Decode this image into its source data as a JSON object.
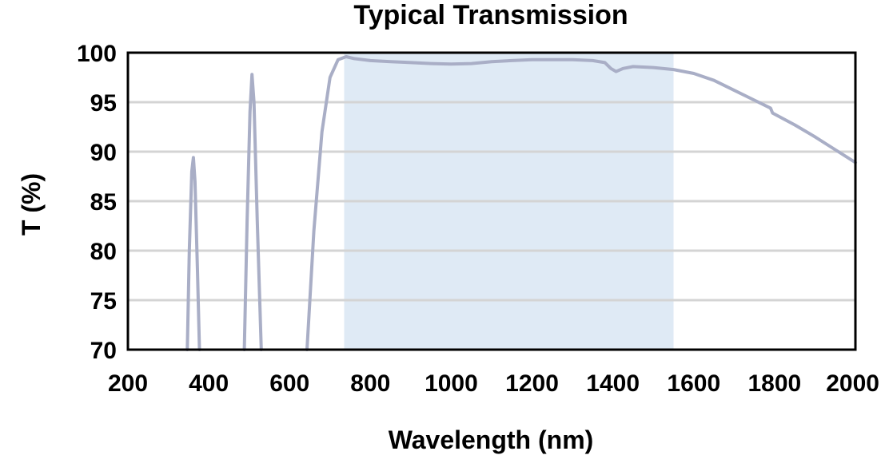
{
  "chart_data": {
    "type": "line",
    "title": "Typical Transmission",
    "xlabel": "Wavelength (nm)",
    "ylabel": "T (%)",
    "xlim": [
      200,
      2000
    ],
    "ylim": [
      70,
      100
    ],
    "xticks": [
      "200",
      "400",
      "600",
      "800",
      "1000",
      "1200",
      "1400",
      "1600",
      "1800",
      "2000"
    ],
    "yticks": [
      "70",
      "75",
      "80",
      "85",
      "90",
      "95",
      "100"
    ],
    "grid": true,
    "highlight_band": {
      "x0": 735,
      "x1": 1550,
      "color": "#dfeaf5"
    },
    "series_color": "#a9aec6",
    "series": [
      {
        "segments": [
          [
            [
              347,
              70
            ],
            [
              352,
              80
            ],
            [
              358,
              88
            ],
            [
              362,
              89.4
            ],
            [
              366,
              87
            ],
            [
              372,
              78
            ],
            [
              377,
              70
            ]
          ],
          [
            [
              488,
              70
            ],
            [
              495,
              83
            ],
            [
              502,
              94
            ],
            [
              507,
              97.8
            ],
            [
              512,
              95
            ],
            [
              520,
              83
            ],
            [
              530,
              70
            ]
          ],
          [
            [
              643,
              70
            ],
            [
              660,
              82
            ],
            [
              680,
              92
            ],
            [
              700,
              97.5
            ],
            [
              720,
              99.3
            ],
            [
              740,
              99.6
            ],
            [
              760,
              99.4
            ],
            [
              800,
              99.2
            ],
            [
              850,
              99.1
            ],
            [
              900,
              99.0
            ],
            [
              950,
              98.9
            ],
            [
              1000,
              98.85
            ],
            [
              1050,
              98.9
            ],
            [
              1100,
              99.1
            ],
            [
              1150,
              99.2
            ],
            [
              1200,
              99.3
            ],
            [
              1250,
              99.3
            ],
            [
              1300,
              99.3
            ],
            [
              1350,
              99.2
            ],
            [
              1380,
              99.0
            ],
            [
              1395,
              98.4
            ],
            [
              1408,
              98.1
            ],
            [
              1425,
              98.4
            ],
            [
              1450,
              98.6
            ],
            [
              1500,
              98.5
            ],
            [
              1550,
              98.3
            ],
            [
              1600,
              97.9
            ],
            [
              1650,
              97.2
            ],
            [
              1700,
              96.2
            ],
            [
              1750,
              95.2
            ],
            [
              1790,
              94.4
            ],
            [
              1795,
              93.9
            ],
            [
              1850,
              92.7
            ],
            [
              1900,
              91.5
            ],
            [
              1950,
              90.2
            ],
            [
              2000,
              88.9
            ]
          ]
        ]
      }
    ]
  }
}
